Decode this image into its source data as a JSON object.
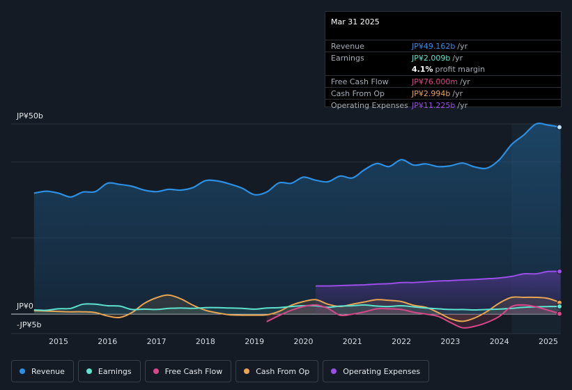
{
  "tooltip": {
    "date": "Mar 31 2025",
    "rows": [
      {
        "label": "Revenue",
        "value": "JP¥49.162b",
        "unit": "/yr",
        "color": "#2d8fe3"
      },
      {
        "label": "Earnings",
        "value": "JP¥2.009b",
        "unit": "/yr",
        "color": "#5ee3d0"
      },
      {
        "label": "",
        "value": "4.1%",
        "unit": "profit margin",
        "color": "#ffffff"
      },
      {
        "label": "Free Cash Flow",
        "value": "JP¥76.000m",
        "unit": "/yr",
        "color": "#d9478a"
      },
      {
        "label": "Cash From Op",
        "value": "JP¥2.994b",
        "unit": "/yr",
        "color": "#e9a552"
      },
      {
        "label": "Operating Expenses",
        "value": "JP¥11.225b",
        "unit": "/yr",
        "color": "#9b4ee8"
      }
    ]
  },
  "legend": [
    {
      "label": "Revenue",
      "color": "#2d8fe3"
    },
    {
      "label": "Earnings",
      "color": "#5ee3d0"
    },
    {
      "label": "Free Cash Flow",
      "color": "#d9478a"
    },
    {
      "label": "Cash From Op",
      "color": "#e9a552"
    },
    {
      "label": "Operating Expenses",
      "color": "#9b4ee8"
    }
  ],
  "chart_data": {
    "type": "area",
    "title": "",
    "unit": "JP¥ billions",
    "y_axis_labels": [
      "JP¥50b",
      "JP¥0",
      "-JP¥5b"
    ],
    "ylim": [
      -5,
      50
    ],
    "xlim": [
      2014.5,
      2025.25
    ],
    "x_ticks": [
      "2015",
      "2016",
      "2017",
      "2018",
      "2019",
      "2020",
      "2021",
      "2022",
      "2023",
      "2024",
      "2025"
    ],
    "highlight_from": 2024.25,
    "series": [
      {
        "name": "Revenue",
        "color": "#2d8fe3",
        "area": true,
        "x": [
          2014.5,
          2014.75,
          2015.0,
          2015.25,
          2015.5,
          2015.75,
          2016.0,
          2016.25,
          2016.5,
          2016.75,
          2017.0,
          2017.25,
          2017.5,
          2017.75,
          2018.0,
          2018.25,
          2018.5,
          2018.75,
          2019.0,
          2019.25,
          2019.5,
          2019.75,
          2020.0,
          2020.25,
          2020.5,
          2020.75,
          2021.0,
          2021.25,
          2021.5,
          2021.75,
          2022.0,
          2022.25,
          2022.5,
          2022.75,
          2023.0,
          2023.25,
          2023.5,
          2023.75,
          2024.0,
          2024.25,
          2024.5,
          2024.75,
          2025.0,
          2025.25
        ],
        "values": [
          31.8,
          32.3,
          31.8,
          30.8,
          32.1,
          32.2,
          34.4,
          34.1,
          33.6,
          32.6,
          32.2,
          32.8,
          32.6,
          33.3,
          35.1,
          35.0,
          34.2,
          33.1,
          31.4,
          32.1,
          34.5,
          34.4,
          36.0,
          35.2,
          34.8,
          36.3,
          35.8,
          38.0,
          39.6,
          38.8,
          40.6,
          39.2,
          39.5,
          38.8,
          39.0,
          39.7,
          38.7,
          38.4,
          40.6,
          44.6,
          47.1,
          50.0,
          49.7,
          49.16
        ]
      },
      {
        "name": "Earnings",
        "color": "#5ee3d0",
        "area": true,
        "x": [
          2014.5,
          2014.75,
          2015.0,
          2015.25,
          2015.5,
          2015.75,
          2016.0,
          2016.25,
          2016.5,
          2016.75,
          2017.0,
          2017.25,
          2017.5,
          2017.75,
          2018.0,
          2018.25,
          2018.5,
          2018.75,
          2019.0,
          2019.25,
          2019.5,
          2019.75,
          2020.0,
          2020.25,
          2020.5,
          2020.75,
          2021.0,
          2021.25,
          2021.5,
          2021.75,
          2022.0,
          2022.25,
          2022.5,
          2022.75,
          2023.0,
          2023.25,
          2023.5,
          2023.75,
          2024.0,
          2024.25,
          2024.5,
          2024.75,
          2025.0,
          2025.25
        ],
        "values": [
          1.1,
          1.0,
          1.4,
          1.5,
          2.6,
          2.6,
          2.2,
          2.1,
          1.2,
          1.3,
          1.2,
          1.5,
          1.6,
          1.5,
          1.7,
          1.7,
          1.6,
          1.5,
          1.3,
          1.6,
          1.7,
          2.0,
          2.2,
          2.2,
          1.8,
          2.1,
          2.2,
          2.4,
          2.1,
          2.0,
          2.2,
          1.9,
          1.6,
          1.4,
          1.2,
          1.2,
          1.1,
          1.2,
          1.3,
          1.5,
          1.8,
          1.9,
          2.0,
          2.01
        ]
      },
      {
        "name": "Free Cash Flow",
        "color": "#d9478a",
        "area": true,
        "x": [
          2019.25,
          2019.5,
          2019.75,
          2020.0,
          2020.25,
          2020.5,
          2020.75,
          2021.0,
          2021.25,
          2021.5,
          2021.75,
          2022.0,
          2022.25,
          2022.5,
          2022.75,
          2023.0,
          2023.25,
          2023.5,
          2023.75,
          2024.0,
          2024.25,
          2024.5,
          2024.75,
          2025.0,
          2025.25
        ],
        "values": [
          -2.0,
          -0.4,
          1.0,
          2.0,
          2.4,
          1.5,
          -0.3,
          0.0,
          0.6,
          1.4,
          1.4,
          1.2,
          0.5,
          0.0,
          -0.6,
          -2.2,
          -3.6,
          -3.2,
          -2.2,
          -0.6,
          2.0,
          2.4,
          1.9,
          1.0,
          0.08
        ]
      },
      {
        "name": "Cash From Op",
        "color": "#e9a552",
        "area": true,
        "x": [
          2014.5,
          2014.75,
          2015.0,
          2015.25,
          2015.5,
          2015.75,
          2016.0,
          2016.25,
          2016.5,
          2016.75,
          2017.0,
          2017.25,
          2017.5,
          2017.75,
          2018.0,
          2018.25,
          2018.5,
          2018.75,
          2019.0,
          2019.25,
          2019.5,
          2019.75,
          2020.0,
          2020.25,
          2020.5,
          2020.75,
          2021.0,
          2021.25,
          2021.5,
          2021.75,
          2022.0,
          2022.25,
          2022.5,
          2022.75,
          2023.0,
          2023.25,
          2023.5,
          2023.75,
          2024.0,
          2024.25,
          2024.5,
          2024.75,
          2025.0,
          2025.25
        ],
        "values": [
          0.9,
          0.8,
          0.7,
          0.6,
          0.6,
          0.4,
          -0.5,
          -0.9,
          0.4,
          2.8,
          4.3,
          5.0,
          4.0,
          2.3,
          1.0,
          0.3,
          -0.2,
          -0.3,
          -0.3,
          -0.2,
          0.7,
          2.3,
          3.3,
          3.8,
          2.6,
          2.0,
          2.6,
          3.2,
          3.8,
          3.6,
          3.3,
          2.3,
          1.8,
          0.4,
          -1.2,
          -1.9,
          -1.0,
          0.7,
          2.9,
          4.4,
          4.4,
          4.4,
          4.1,
          2.99
        ]
      },
      {
        "name": "Operating Expenses",
        "color": "#9b4ee8",
        "area": true,
        "x": [
          2020.25,
          2020.5,
          2020.75,
          2021.0,
          2021.25,
          2021.5,
          2021.75,
          2022.0,
          2022.25,
          2022.5,
          2022.75,
          2023.0,
          2023.25,
          2023.5,
          2023.75,
          2024.0,
          2024.25,
          2024.5,
          2024.75,
          2025.0,
          2025.25
        ],
        "values": [
          7.4,
          7.4,
          7.5,
          7.6,
          7.7,
          7.9,
          8.0,
          8.3,
          8.3,
          8.5,
          8.7,
          8.8,
          9.0,
          9.1,
          9.3,
          9.5,
          9.9,
          10.6,
          10.6,
          11.2,
          11.225
        ]
      }
    ]
  }
}
